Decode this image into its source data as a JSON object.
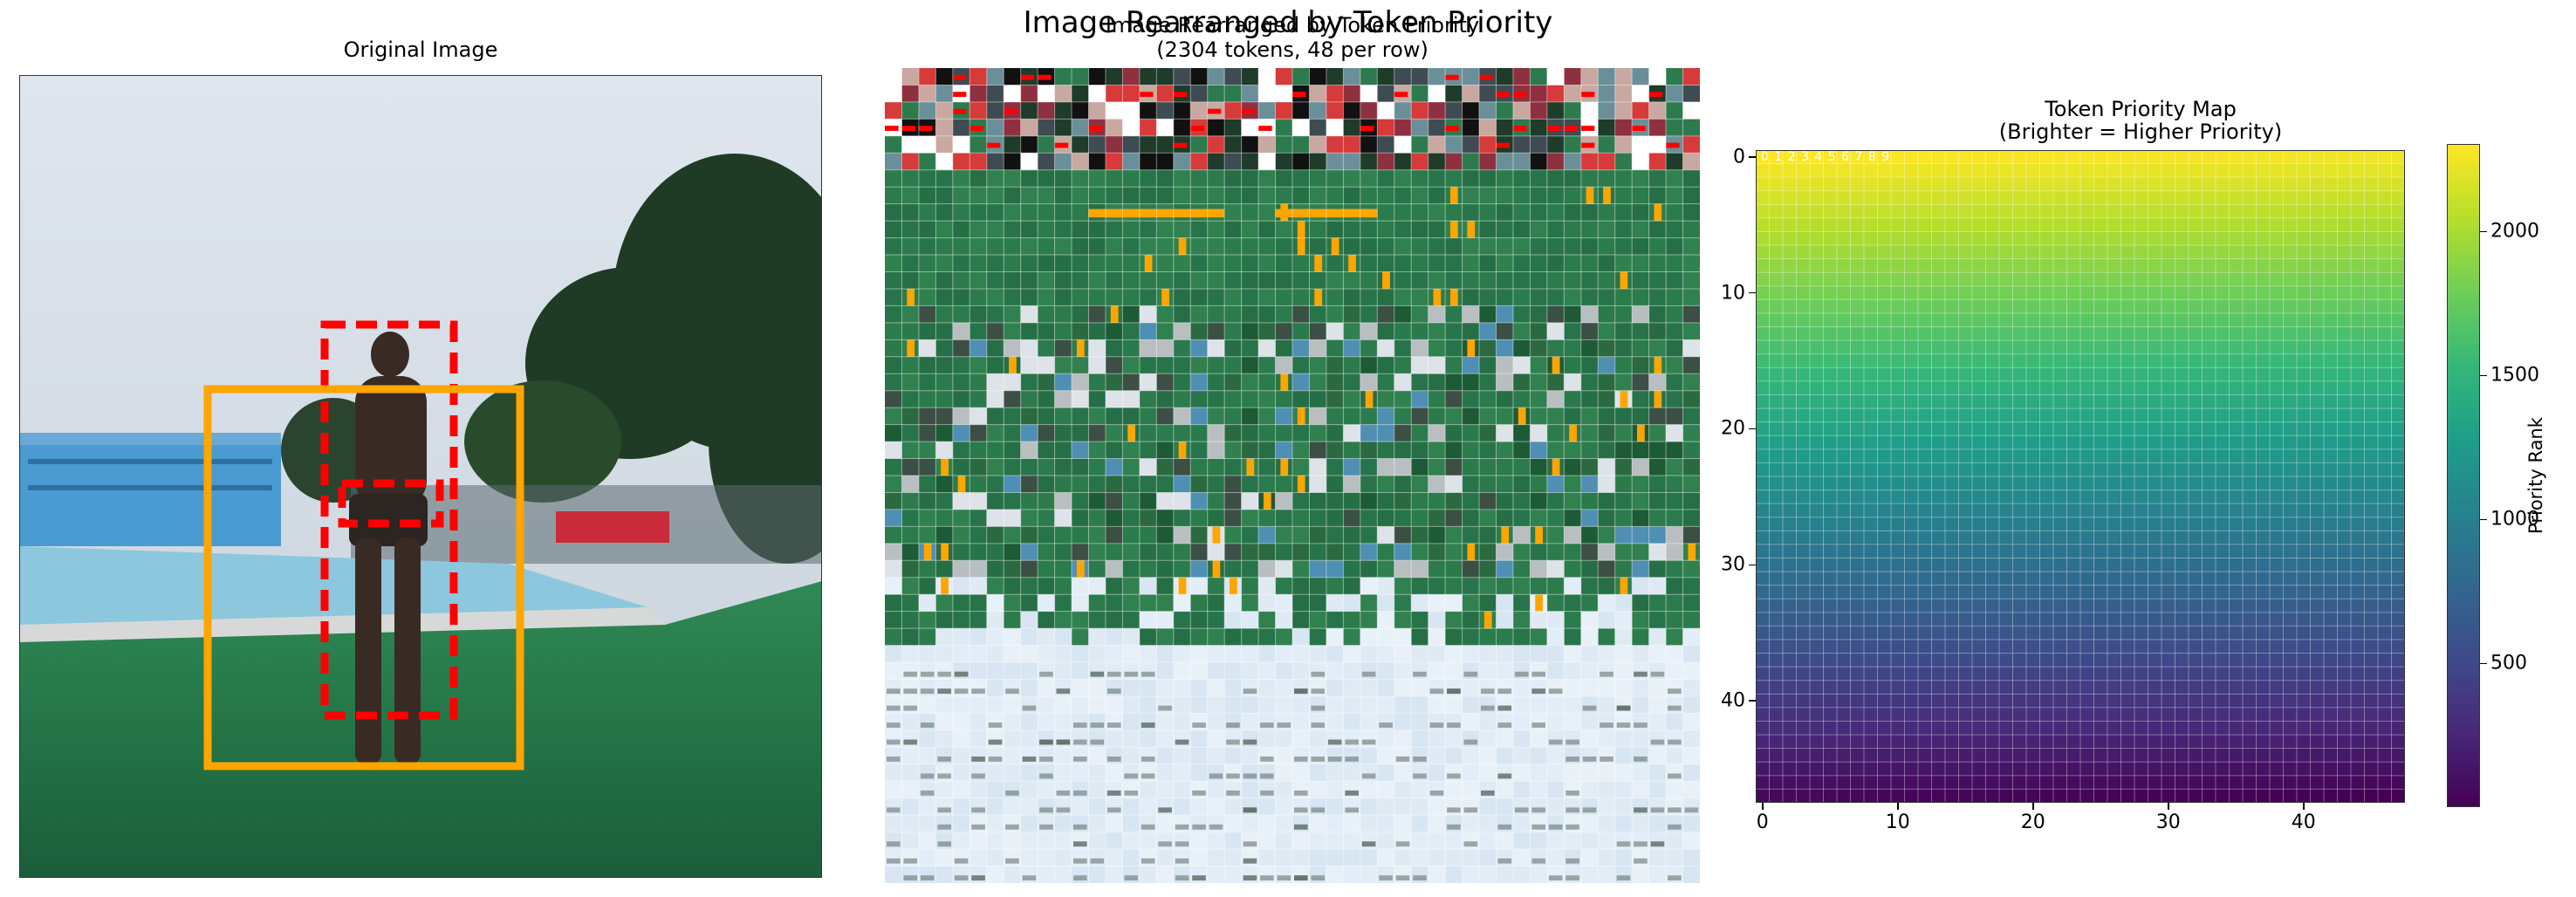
{
  "suptitle": "Image Rearranged by Token Priority",
  "panels": {
    "original": {
      "title": "Original Image"
    },
    "rearranged": {
      "title_line1": "Image Rearranged by Token Priority",
      "title_line2": "(2304 tokens, 48 per row)"
    },
    "priority_map": {
      "title_line1": "Token Priority Map",
      "title_line2": "(Brighter = Higher Priority)",
      "corner_labels": "0 1 2 3 4 5 6 7 8 9",
      "colorbar_label": "Priority Rank"
    }
  },
  "chart_data": [
    {
      "type": "image",
      "title": "Original Image",
      "boxes": [
        {
          "style": "dashed",
          "color": "#ff0000"
        },
        {
          "style": "dashed",
          "color": "#ff0000"
        },
        {
          "style": "solid",
          "color": "#ffa500"
        }
      ]
    },
    {
      "type": "image",
      "title": "Image Rearranged by Token Priority\n(2304 tokens, 48 per row)",
      "grid": {
        "cols": 48,
        "rows": 48
      }
    },
    {
      "type": "heatmap",
      "title": "Token Priority Map\n(Brighter = Higher Priority)",
      "colormap": "viridis",
      "grid": {
        "cols": 48,
        "rows": 48
      },
      "value_range": [
        1,
        2304
      ],
      "x_ticks": [
        "0",
        "10",
        "20",
        "30",
        "40"
      ],
      "y_ticks": [
        "0",
        "10",
        "20",
        "30",
        "40"
      ],
      "colorbar_ticks": [
        "500",
        "1000",
        "1500",
        "2000"
      ],
      "colorbar_label": "Priority Rank"
    }
  ]
}
